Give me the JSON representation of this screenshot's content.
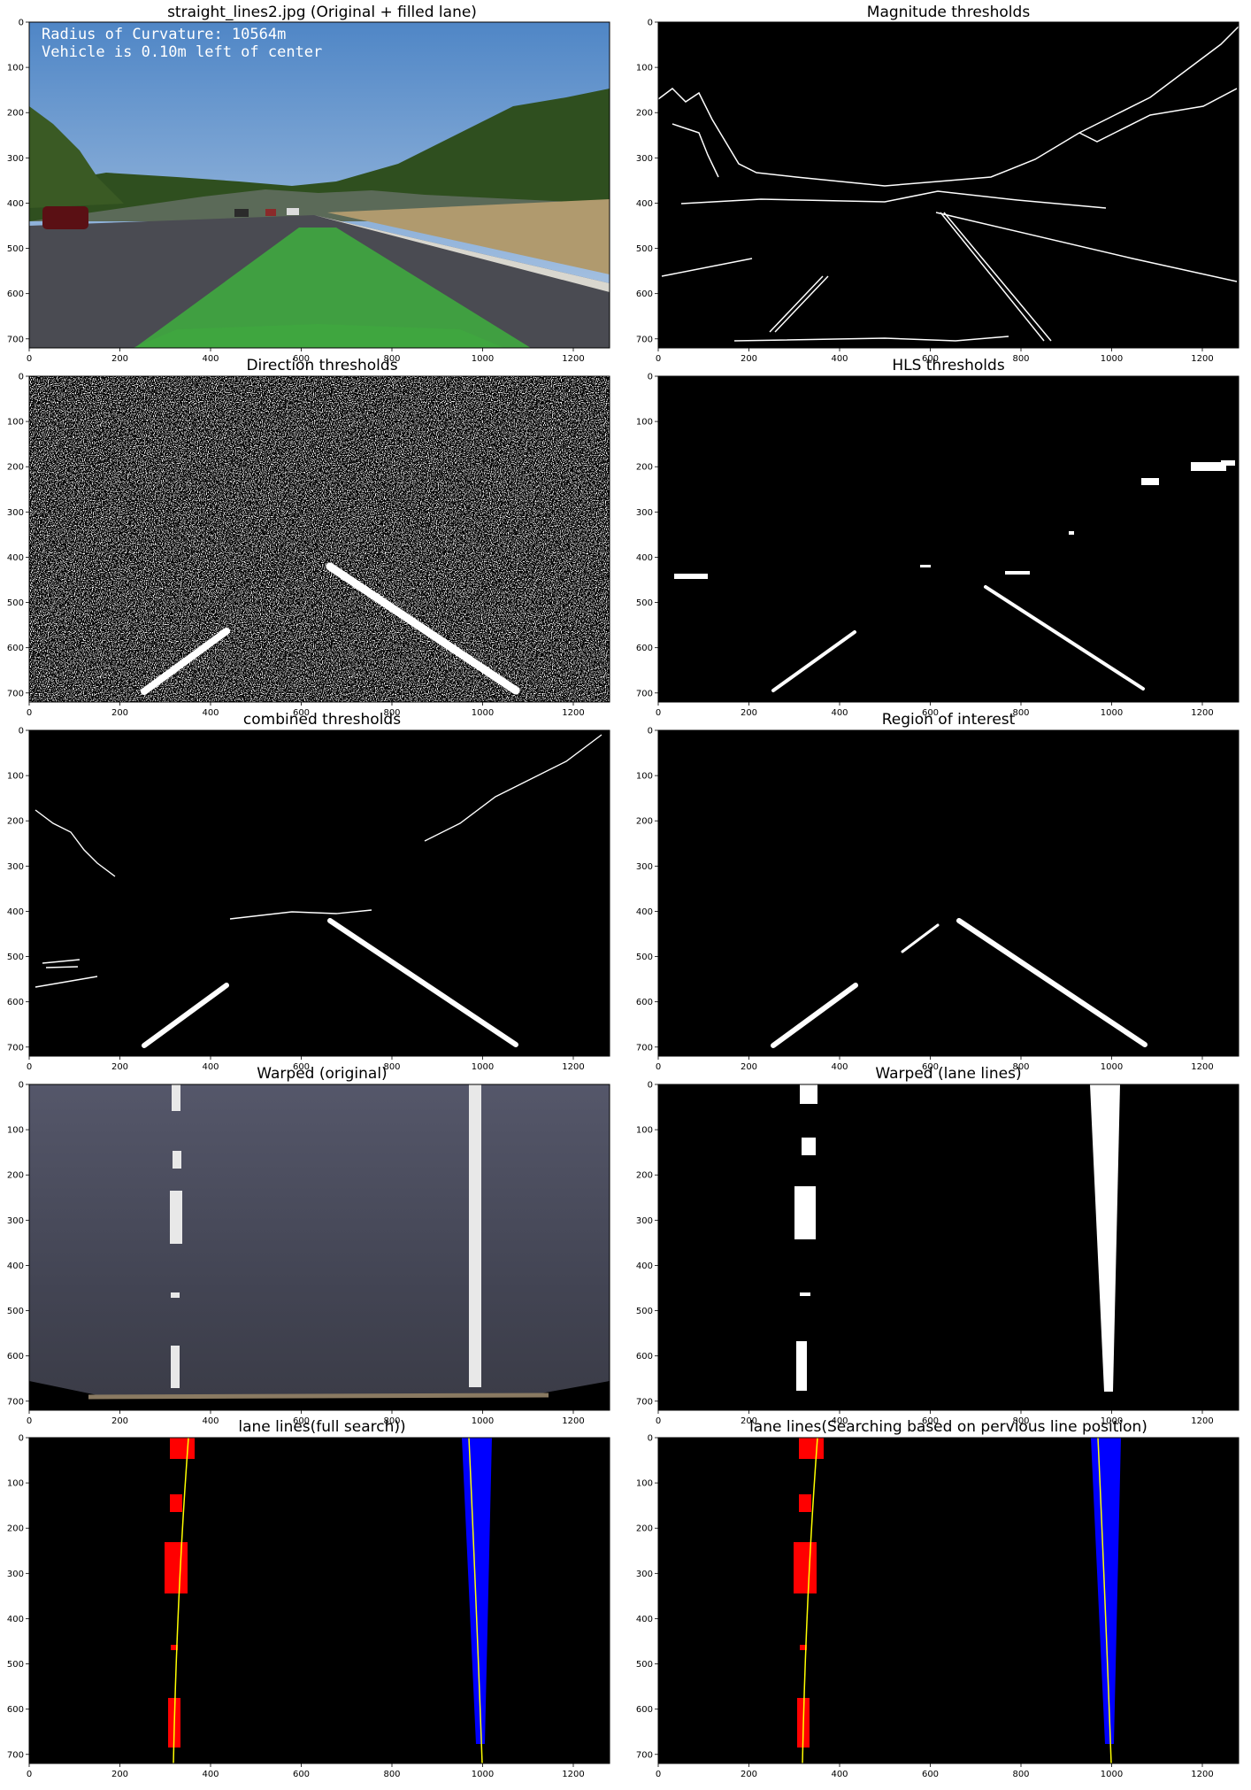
{
  "panels": [
    {
      "id": "original",
      "title": "straight_lines2.jpg (Original + filled lane)",
      "overlay": [
        "Radius of Curvature: 10564m",
        "Vehicle is 0.10m left of center"
      ]
    },
    {
      "id": "magnitude",
      "title": "Magnitude thresholds"
    },
    {
      "id": "direction",
      "title": "Direction thresholds"
    },
    {
      "id": "hls",
      "title": "HLS thresholds"
    },
    {
      "id": "combined",
      "title": "combined thresholds"
    },
    {
      "id": "roi",
      "title": "Region of interest"
    },
    {
      "id": "warped",
      "title": "Warped (original)"
    },
    {
      "id": "warpedbin",
      "title": "Warped (lane lines)"
    },
    {
      "id": "fullsearch",
      "title": "lane lines(full search))"
    },
    {
      "id": "prevsearch",
      "title": "lane lines(Searching based on pervious line position)"
    }
  ],
  "axes": {
    "xticks": [
      0,
      200,
      400,
      600,
      800,
      1000,
      1200
    ],
    "yticks": [
      0,
      100,
      200,
      300,
      400,
      500,
      600,
      700
    ],
    "xlim": [
      0,
      1280
    ],
    "ylim": [
      720,
      0
    ]
  },
  "colors": {
    "lane_fill": "#3fa83f",
    "left_pixels": "#ff0000",
    "right_pixels": "#0000ff",
    "fit_line": "#ffff00"
  }
}
